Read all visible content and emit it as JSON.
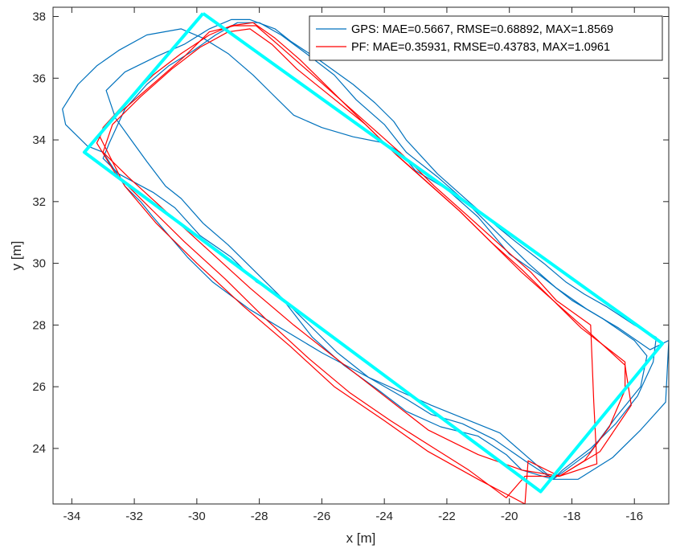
{
  "chart_data": {
    "type": "line",
    "xlabel": "x [m]",
    "ylabel": "y [m]",
    "xlim": [
      -34.6,
      -14.9
    ],
    "ylim": [
      22.2,
      38.3
    ],
    "xticks": [
      -34,
      -32,
      -30,
      -28,
      -26,
      -24,
      -22,
      -20,
      -18,
      -16
    ],
    "yticks": [
      24,
      26,
      28,
      30,
      32,
      34,
      36,
      38
    ],
    "legend_position": "top-right",
    "grid": false,
    "series": [
      {
        "name": "GPS: MAE=0.5667, RMSE=0.68892, MAX=1.8569",
        "color": "#0072BD",
        "segments": [
          [
            [
              -18.6,
              23.0
            ],
            [
              -20.3,
              24.5
            ],
            [
              -22.5,
              25.4
            ],
            [
              -24.5,
              26.3
            ],
            [
              -26.0,
              27.1
            ],
            [
              -28.3,
              28.5
            ],
            [
              -29.5,
              29.4
            ],
            [
              -30.3,
              30.2
            ],
            [
              -31.4,
              31.5
            ],
            [
              -31.8,
              32.0
            ],
            [
              -32.3,
              32.5
            ],
            [
              -33.0,
              33.6
            ],
            [
              -33.5,
              33.8
            ],
            [
              -34.2,
              34.5
            ],
            [
              -34.3,
              35.0
            ],
            [
              -33.8,
              35.8
            ],
            [
              -33.2,
              36.4
            ],
            [
              -32.5,
              36.9
            ],
            [
              -31.6,
              37.4
            ],
            [
              -30.5,
              37.6
            ],
            [
              -29.8,
              37.3
            ],
            [
              -29.0,
              36.8
            ],
            [
              -28.2,
              36.1
            ],
            [
              -27.6,
              35.5
            ],
            [
              -26.9,
              34.8
            ],
            [
              -26.0,
              34.4
            ],
            [
              -25.0,
              34.1
            ],
            [
              -24.0,
              33.9
            ],
            [
              -23.5,
              33.6
            ],
            [
              -23.0,
              33.0
            ],
            [
              -22.0,
              32.4
            ],
            [
              -21.0,
              31.5
            ],
            [
              -20.0,
              30.3
            ],
            [
              -19.0,
              29.6
            ],
            [
              -18.0,
              28.8
            ],
            [
              -17.0,
              28.2
            ],
            [
              -16.0,
              27.5
            ],
            [
              -15.6,
              27.0
            ],
            [
              -15.8,
              26.0
            ],
            [
              -16.6,
              25.0
            ],
            [
              -17.4,
              23.9
            ],
            [
              -18.6,
              23.0
            ]
          ],
          [
            [
              -18.6,
              23.0
            ],
            [
              -19.5,
              23.6
            ],
            [
              -20.5,
              24.3
            ],
            [
              -21.5,
              24.8
            ],
            [
              -22.5,
              25.1
            ],
            [
              -23.3,
              25.6
            ],
            [
              -24.5,
              26.3
            ],
            [
              -25.5,
              27.1
            ],
            [
              -26.2,
              27.8
            ],
            [
              -27.2,
              28.8
            ],
            [
              -28.2,
              29.8
            ],
            [
              -29.0,
              30.6
            ],
            [
              -29.8,
              31.3
            ],
            [
              -30.5,
              32.1
            ],
            [
              -31.0,
              32.5
            ],
            [
              -31.6,
              33.3
            ],
            [
              -32.1,
              34.0
            ],
            [
              -32.6,
              34.7
            ],
            [
              -32.9,
              35.6
            ],
            [
              -32.3,
              36.2
            ],
            [
              -31.3,
              36.7
            ],
            [
              -30.4,
              37.1
            ],
            [
              -29.6,
              37.6
            ],
            [
              -28.9,
              37.9
            ],
            [
              -28.3,
              37.9
            ],
            [
              -27.5,
              37.6
            ],
            [
              -27.0,
              37.2
            ],
            [
              -26.1,
              36.6
            ],
            [
              -25.0,
              35.8
            ],
            [
              -24.3,
              35.2
            ],
            [
              -23.7,
              34.6
            ],
            [
              -23.3,
              34.0
            ],
            [
              -22.3,
              32.9
            ],
            [
              -21.3,
              32.0
            ],
            [
              -20.4,
              31.2
            ],
            [
              -19.8,
              30.7
            ],
            [
              -18.9,
              30.0
            ],
            [
              -18.2,
              29.4
            ],
            [
              -17.6,
              29.0
            ],
            [
              -16.9,
              28.6
            ],
            [
              -16.0,
              28.0
            ],
            [
              -15.3,
              27.6
            ],
            [
              -15.4,
              26.8
            ],
            [
              -15.9,
              25.7
            ],
            [
              -16.6,
              24.8
            ],
            [
              -17.4,
              24.0
            ],
            [
              -18.3,
              23.3
            ],
            [
              -18.6,
              23.0
            ]
          ],
          [
            [
              -18.6,
              23.0
            ],
            [
              -19.6,
              23.3
            ],
            [
              -20.1,
              23.8
            ],
            [
              -21.0,
              24.4
            ],
            [
              -22.2,
              24.7
            ],
            [
              -23.3,
              25.2
            ],
            [
              -24.2,
              25.9
            ],
            [
              -25.3,
              26.7
            ],
            [
              -26.3,
              27.6
            ],
            [
              -27.3,
              28.9
            ],
            [
              -28.1,
              29.4
            ],
            [
              -28.9,
              30.2
            ],
            [
              -29.9,
              30.9
            ],
            [
              -30.7,
              31.8
            ],
            [
              -31.4,
              32.3
            ],
            [
              -32.5,
              32.9
            ],
            [
              -33.0,
              33.4
            ],
            [
              -32.8,
              33.9
            ],
            [
              -32.3,
              35.0
            ],
            [
              -31.6,
              35.8
            ],
            [
              -30.9,
              36.4
            ],
            [
              -30.1,
              36.9
            ],
            [
              -29.4,
              37.4
            ],
            [
              -28.7,
              37.8
            ],
            [
              -28.0,
              37.8
            ],
            [
              -27.3,
              37.4
            ],
            [
              -26.5,
              36.8
            ],
            [
              -25.6,
              36.1
            ],
            [
              -24.9,
              35.3
            ],
            [
              -24.0,
              34.5
            ],
            [
              -23.3,
              33.6
            ],
            [
              -22.3,
              32.8
            ],
            [
              -21.4,
              32.0
            ],
            [
              -20.5,
              31.1
            ],
            [
              -19.4,
              30.0
            ],
            [
              -18.5,
              29.2
            ],
            [
              -17.5,
              28.5
            ],
            [
              -16.5,
              27.9
            ],
            [
              -15.5,
              27.2
            ],
            [
              -14.9,
              27.5
            ],
            [
              -15.0,
              25.5
            ],
            [
              -15.8,
              24.6
            ],
            [
              -16.7,
              23.7
            ],
            [
              -17.8,
              23.0
            ],
            [
              -18.6,
              23.0
            ]
          ]
        ]
      },
      {
        "name": "PF: MAE=0.35931, RMSE=0.43783, MAX=1.0961",
        "color": "#FF0000",
        "segments": [
          [
            [
              -18.4,
              23.1
            ],
            [
              -19.6,
              23.3
            ],
            [
              -21.0,
              23.8
            ],
            [
              -22.6,
              24.6
            ],
            [
              -24.0,
              25.7
            ],
            [
              -25.4,
              26.8
            ],
            [
              -26.9,
              28.0
            ],
            [
              -28.3,
              29.2
            ],
            [
              -29.6,
              30.4
            ],
            [
              -30.9,
              31.6
            ],
            [
              -32.2,
              32.8
            ],
            [
              -33.0,
              33.6
            ],
            [
              -32.7,
              34.5
            ],
            [
              -31.8,
              35.4
            ],
            [
              -30.8,
              36.3
            ],
            [
              -29.9,
              37.0
            ],
            [
              -29.0,
              37.5
            ],
            [
              -28.3,
              37.6
            ],
            [
              -27.6,
              37.1
            ],
            [
              -26.8,
              36.3
            ],
            [
              -25.7,
              35.4
            ],
            [
              -24.6,
              34.5
            ],
            [
              -23.6,
              33.5
            ],
            [
              -22.6,
              32.6
            ],
            [
              -21.6,
              31.7
            ],
            [
              -20.6,
              30.7
            ],
            [
              -19.6,
              29.8
            ],
            [
              -18.7,
              28.9
            ],
            [
              -17.7,
              27.9
            ],
            [
              -16.8,
              27.2
            ],
            [
              -16.3,
              26.8
            ],
            [
              -16.3,
              25.9
            ],
            [
              -16.8,
              24.7
            ],
            [
              -17.6,
              23.6
            ],
            [
              -18.4,
              23.1
            ]
          ],
          [
            [
              -18.4,
              23.1
            ],
            [
              -19.5,
              23.1
            ],
            [
              -20.1,
              22.4
            ],
            [
              -21.3,
              23.3
            ],
            [
              -22.4,
              24.0
            ],
            [
              -23.8,
              24.9
            ],
            [
              -25.1,
              25.8
            ],
            [
              -26.4,
              26.9
            ],
            [
              -27.8,
              28.2
            ],
            [
              -29.1,
              29.5
            ],
            [
              -30.4,
              30.7
            ],
            [
              -31.5,
              31.8
            ],
            [
              -32.6,
              32.9
            ],
            [
              -33.2,
              33.9
            ],
            [
              -32.9,
              34.5
            ],
            [
              -32.1,
              35.2
            ],
            [
              -31.3,
              35.9
            ],
            [
              -30.4,
              36.7
            ],
            [
              -29.6,
              37.5
            ],
            [
              -28.8,
              37.7
            ],
            [
              -28.1,
              37.7
            ],
            [
              -27.3,
              37.0
            ],
            [
              -26.4,
              36.2
            ],
            [
              -25.4,
              35.3
            ],
            [
              -24.4,
              34.4
            ],
            [
              -23.4,
              33.5
            ],
            [
              -22.4,
              32.5
            ],
            [
              -21.4,
              31.6
            ],
            [
              -20.3,
              30.6
            ],
            [
              -19.3,
              29.7
            ],
            [
              -18.5,
              28.8
            ],
            [
              -17.4,
              28.0
            ],
            [
              -17.3,
              25.5
            ],
            [
              -17.2,
              23.5
            ],
            [
              -18.4,
              23.1
            ]
          ],
          [
            [
              -18.4,
              23.1
            ],
            [
              -19.4,
              23.6
            ],
            [
              -19.5,
              22.2
            ],
            [
              -21.0,
              23.0
            ],
            [
              -22.6,
              23.9
            ],
            [
              -24.0,
              24.9
            ],
            [
              -25.6,
              26.0
            ],
            [
              -27.0,
              27.3
            ],
            [
              -28.5,
              28.6
            ],
            [
              -30.0,
              30.0
            ],
            [
              -31.3,
              31.3
            ],
            [
              -32.3,
              32.5
            ],
            [
              -33.1,
              34.1
            ],
            [
              -33.0,
              34.4
            ],
            [
              -32.2,
              35.3
            ],
            [
              -31.4,
              36.1
            ],
            [
              -30.5,
              36.8
            ],
            [
              -29.6,
              37.4
            ],
            [
              -28.9,
              37.7
            ],
            [
              -28.2,
              37.8
            ],
            [
              -27.5,
              37.3
            ],
            [
              -26.7,
              36.6
            ],
            [
              -25.7,
              35.6
            ],
            [
              -24.7,
              34.6
            ],
            [
              -23.7,
              33.6
            ],
            [
              -22.7,
              32.7
            ],
            [
              -21.6,
              31.7
            ],
            [
              -20.6,
              30.7
            ],
            [
              -19.6,
              29.7
            ],
            [
              -18.6,
              28.8
            ],
            [
              -17.6,
              27.9
            ],
            [
              -16.3,
              26.7
            ],
            [
              -16.1,
              25.4
            ],
            [
              -17.1,
              23.9
            ],
            [
              -18.4,
              23.1
            ]
          ]
        ]
      },
      {
        "name": "",
        "color": "#00FFFF",
        "segments": [
          [
            [
              -29.8,
              38.1
            ],
            [
              -15.1,
              27.4
            ],
            [
              -19.0,
              22.6
            ],
            [
              -33.6,
              33.6
            ],
            [
              -29.8,
              38.1
            ]
          ]
        ]
      }
    ]
  }
}
